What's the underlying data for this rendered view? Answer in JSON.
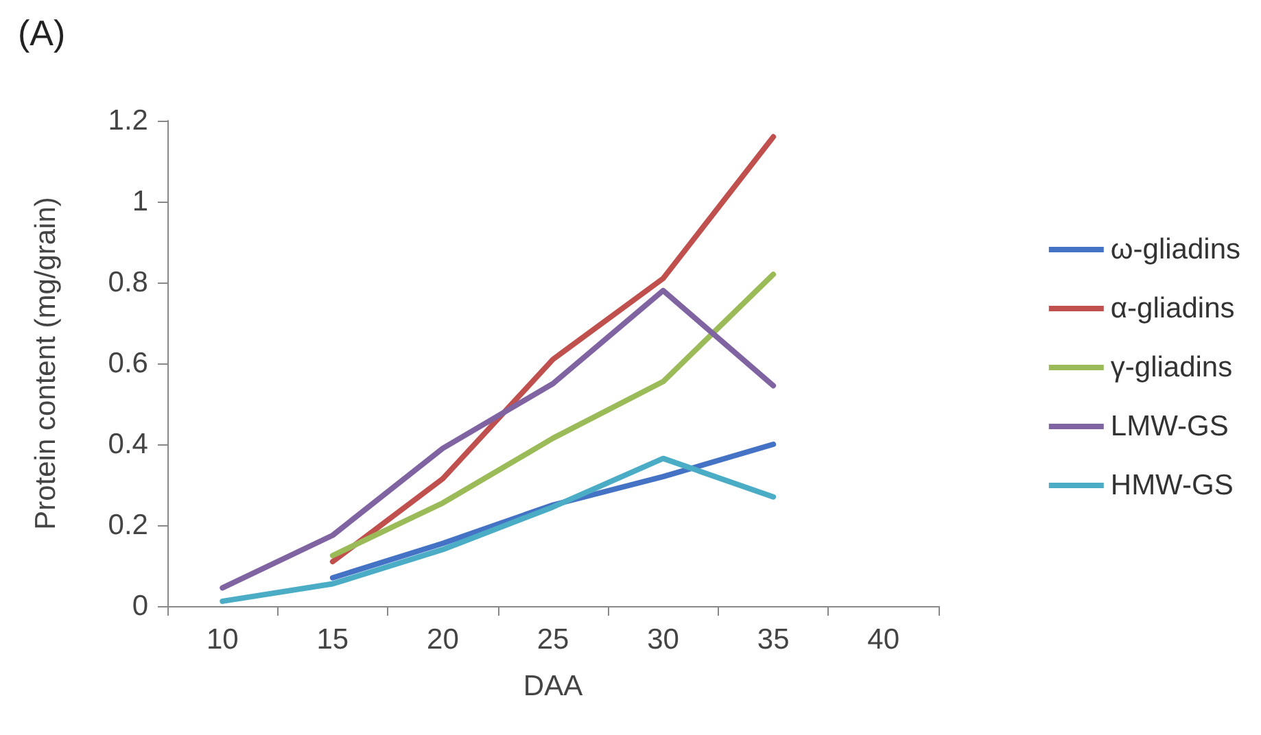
{
  "chart_data": {
    "type": "line",
    "title": "(A)",
    "xlabel": "DAA",
    "ylabel": "Protein content (mg/grain)",
    "categories": [
      "10",
      "15",
      "20",
      "25",
      "30",
      "35",
      "40"
    ],
    "series": [
      {
        "name": "ω-gliadins",
        "color": "#4472c4",
        "values": [
          null,
          0.07,
          0.155,
          0.25,
          0.32,
          0.4,
          null
        ]
      },
      {
        "name": "α-gliadins",
        "color": "#c0504d",
        "values": [
          null,
          0.11,
          0.315,
          0.61,
          0.81,
          1.16,
          null
        ]
      },
      {
        "name": "γ-gliadins",
        "color": "#9bbb59",
        "values": [
          null,
          0.125,
          0.255,
          0.415,
          0.555,
          0.82,
          null
        ]
      },
      {
        "name": "LMW-GS",
        "color": "#8064a2",
        "values": [
          0.045,
          0.175,
          0.39,
          0.55,
          0.78,
          0.545,
          null
        ]
      },
      {
        "name": "HMW-GS",
        "color": "#4bacc6",
        "values": [
          0.012,
          0.055,
          0.14,
          0.245,
          0.365,
          0.27,
          null
        ]
      }
    ],
    "ylim": [
      0,
      1.2
    ],
    "yticks": [
      0,
      0.2,
      0.4,
      0.6,
      0.8,
      1,
      1.2
    ],
    "grid": false,
    "legend": "right",
    "marker": "none",
    "line_style": "solid"
  }
}
